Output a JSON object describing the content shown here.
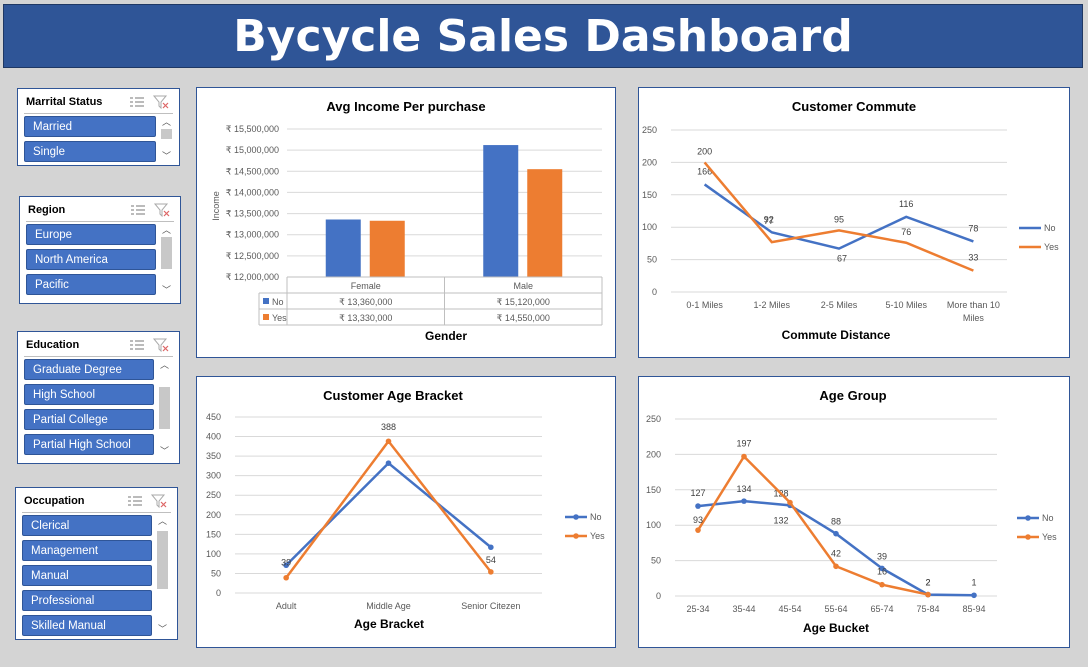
{
  "dashboard": {
    "title": "Bycycle Sales Dashboard"
  },
  "slicers": {
    "marital": {
      "title": "Marrital Status",
      "items": [
        "Married",
        "Single"
      ]
    },
    "region": {
      "title": "Region",
      "items": [
        "Europe",
        "North America",
        "Pacific"
      ]
    },
    "education": {
      "title": "Education",
      "items": [
        "Graduate Degree",
        "High School",
        "Partial College",
        "Partial High School"
      ]
    },
    "occupation": {
      "title": "Occupation",
      "items": [
        "Clerical",
        "Management",
        "Manual",
        "Professional",
        "Skilled Manual"
      ]
    }
  },
  "icons": {
    "multiselect": "multi-select-icon",
    "clear_filter": "clear-filter-icon"
  },
  "colors": {
    "no": "#4472c4",
    "yes": "#ed7d31",
    "banner": "#2f5597"
  },
  "chart_data": [
    {
      "id": "income",
      "type": "bar",
      "title": "Avg Income Per purchase",
      "xlabel": "Gender",
      "ylabel": "Income",
      "categories": [
        "Female",
        "Male"
      ],
      "series": [
        {
          "name": "No",
          "values": [
            13360000,
            15120000
          ],
          "labels": [
            "₹ 13,360,000",
            "₹ 15,120,000"
          ]
        },
        {
          "name": "Yes",
          "values": [
            13330000,
            14550000
          ],
          "labels": [
            "₹ 13,330,000",
            "₹ 14,550,000"
          ]
        }
      ],
      "yticks": [
        "₹ 12,000,000",
        "₹ 12,500,000",
        "₹ 13,000,000",
        "₹ 13,500,000",
        "₹ 14,000,000",
        "₹ 14,500,000",
        "₹ 15,000,000",
        "₹ 15,500,000"
      ],
      "ylim": [
        12000000,
        15500000
      ],
      "data_table": true,
      "legend": "data-table"
    },
    {
      "id": "commute",
      "type": "line",
      "title": "Customer Commute",
      "xlabel": "Commute Distance",
      "ylabel": "",
      "categories": [
        "0-1 Miles",
        "1-2 Miles",
        "2-5 Miles",
        "5-10 Miles",
        "More than 10 Miles"
      ],
      "series": [
        {
          "name": "No",
          "values": [
            166,
            92,
            67,
            116,
            78
          ]
        },
        {
          "name": "Yes",
          "values": [
            200,
            77,
            95,
            76,
            33
          ]
        }
      ],
      "yticks": [
        "0",
        "50",
        "100",
        "150",
        "200",
        "250"
      ],
      "ylim": [
        0,
        250
      ],
      "legend": "right"
    },
    {
      "id": "agebracket",
      "type": "line",
      "title": "Customer Age Bracket",
      "xlabel": "Age Bracket",
      "ylabel": "",
      "categories": [
        "Adult",
        "Middle Age",
        "Senior Citezen"
      ],
      "series": [
        {
          "name": "No",
          "values": [
            71,
            332,
            117
          ],
          "labels": [
            "",
            "",
            ""
          ]
        },
        {
          "name": "Yes",
          "values": [
            39,
            388,
            54
          ],
          "labels": [
            "39",
            "388",
            "54"
          ]
        }
      ],
      "yticks": [
        "0",
        "50",
        "100",
        "150",
        "200",
        "250",
        "300",
        "350",
        "400",
        "450"
      ],
      "ylim": [
        0,
        450
      ],
      "legend": "right"
    },
    {
      "id": "agegroup",
      "type": "line",
      "title": "Age Group",
      "xlabel": "Age Bucket",
      "ylabel": "",
      "categories": [
        "25-34",
        "35-44",
        "45-54",
        "55-64",
        "65-74",
        "75-84",
        "85-94"
      ],
      "series": [
        {
          "name": "No",
          "values": [
            127,
            134,
            128,
            88,
            39,
            2,
            1
          ]
        },
        {
          "name": "Yes",
          "values": [
            93,
            197,
            132,
            42,
            16,
            2,
            null
          ]
        }
      ],
      "yticks": [
        "0",
        "50",
        "100",
        "150",
        "200",
        "250"
      ],
      "ylim": [
        0,
        250
      ],
      "legend": "right"
    }
  ]
}
